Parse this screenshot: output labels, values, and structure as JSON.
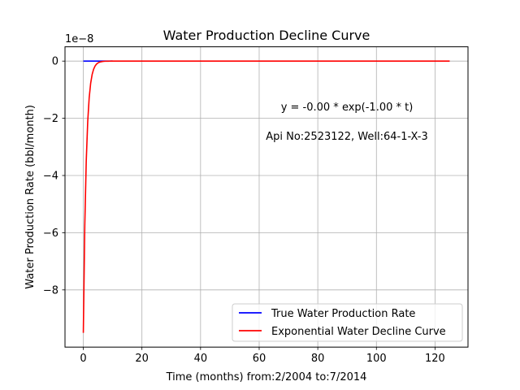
{
  "chart_data": {
    "type": "line",
    "title": "Water Production Decline Curve",
    "xlabel": "Time (months) from:2/2004 to:7/2014",
    "ylabel": "Water Production Rate (bbl/month)",
    "y_scale_label": "1e−8",
    "xlim": [
      -6.25,
      131.25
    ],
    "ylim": [
      -10,
      0.5
    ],
    "y_scale": 1e-08,
    "x_ticks": [
      0,
      20,
      40,
      60,
      80,
      100,
      120
    ],
    "x_tick_labels": [
      "0",
      "20",
      "40",
      "60",
      "80",
      "100",
      "120"
    ],
    "y_ticks": [
      0,
      -2,
      -4,
      -6,
      -8
    ],
    "y_tick_labels": [
      "0",
      "−2",
      "−4",
      "−6",
      "−8"
    ],
    "grid": true,
    "legend_position": "lower-right",
    "annotations": [
      "y = -0.00 * exp(-1.00 * t)",
      "Api No:2523122, Well:64-1-X-3"
    ],
    "series": [
      {
        "name": "True Water Production Rate",
        "color": "#0000ff",
        "x": [
          0,
          1,
          2,
          3,
          4,
          5,
          6,
          7,
          8,
          9,
          10
        ],
        "y": [
          0,
          0,
          0,
          0,
          0,
          0,
          0,
          0,
          0,
          0,
          0
        ]
      },
      {
        "name": "Exponential Water Decline Curve",
        "color": "#ff0000",
        "model": {
          "a": -9.5,
          "b": 1.0
        },
        "x": [
          0,
          0.5,
          1,
          1.5,
          2,
          2.5,
          3,
          3.5,
          4,
          5,
          6,
          7,
          8,
          10,
          15,
          20,
          30,
          40,
          60,
          80,
          100,
          125
        ],
        "y": [
          -9.5,
          -5.76,
          -3.49,
          -2.12,
          -1.29,
          -0.78,
          -0.47,
          -0.29,
          -0.17,
          -0.06,
          -0.02,
          -0.01,
          0,
          0,
          0,
          0,
          0,
          0,
          0,
          0,
          0,
          0
        ]
      }
    ]
  }
}
